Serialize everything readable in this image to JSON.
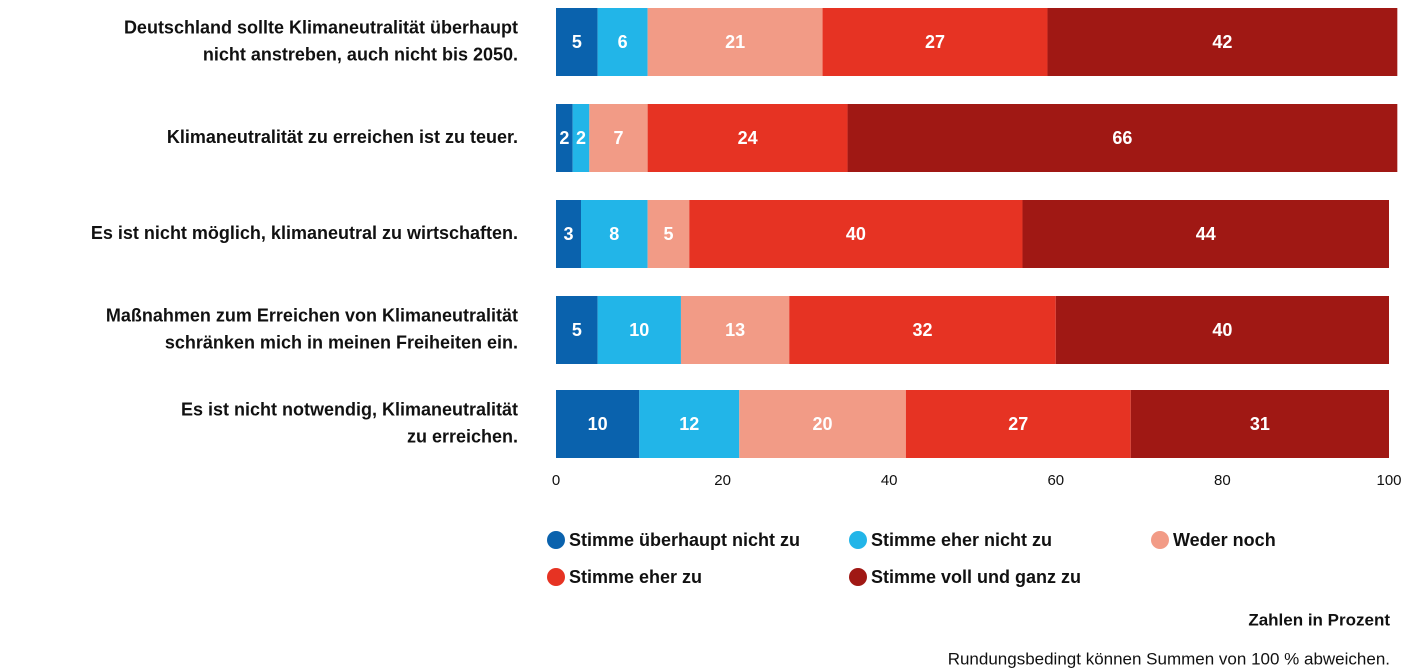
{
  "chart_data": {
    "type": "stacked_bar_horizontal",
    "categories": [
      [
        "Deutschland sollte Klimaneutralität überhaupt",
        "nicht anstreben, auch nicht bis 2050."
      ],
      [
        "Klimaneutralität zu erreichen ist zu teuer."
      ],
      [
        "Es ist nicht möglich, klimaneutral zu wirtschaften."
      ],
      [
        "Maßnahmen zum Erreichen von Klimaneutralität",
        "schränken mich in meinen Freiheiten ein."
      ],
      [
        "Es ist nicht notwendig, Klimaneutralität",
        "zu erreichen."
      ]
    ],
    "series": [
      {
        "name": "Stimme überhaupt nicht zu",
        "color": "#0a62ad",
        "values": [
          5,
          2,
          3,
          5,
          10
        ]
      },
      {
        "name": "Stimme eher nicht zu",
        "color": "#22b5e8",
        "values": [
          6,
          2,
          8,
          10,
          12
        ]
      },
      {
        "name": "Weder noch",
        "color": "#f29b86",
        "values": [
          21,
          7,
          5,
          13,
          20
        ]
      },
      {
        "name": "Stimme eher zu",
        "color": "#e63323",
        "values": [
          27,
          24,
          40,
          32,
          27
        ]
      },
      {
        "name": "Stimme voll und ganz zu",
        "color": "#a01814",
        "values": [
          42,
          66,
          44,
          40,
          31
        ]
      }
    ],
    "xlim": [
      0,
      100
    ],
    "xticks": [
      0,
      20,
      40,
      60,
      80,
      100
    ],
    "grid": false,
    "unit_note": "Zahlen in Prozent",
    "footnote": "Rundungsbedingt können Summen von 100 % abweichen."
  }
}
